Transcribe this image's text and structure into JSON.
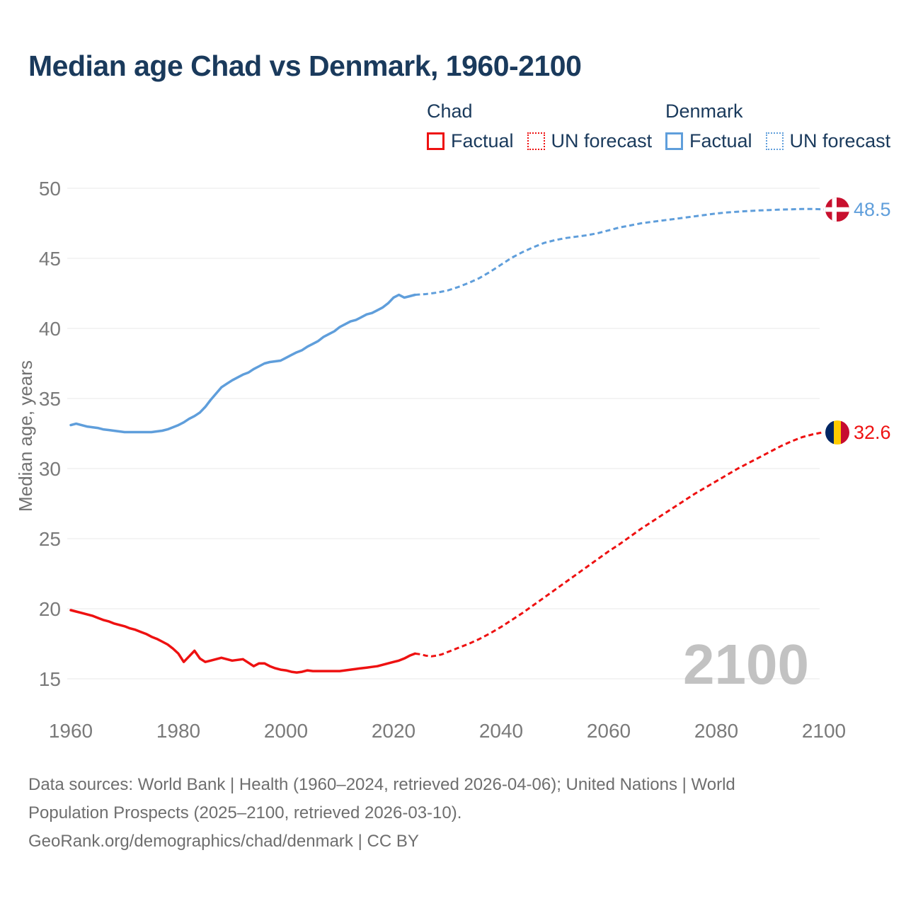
{
  "title": "Median age Chad vs Denmark, 1960-2100",
  "legend": {
    "chad": {
      "label": "Chad",
      "factual": "Factual",
      "forecast": "UN forecast"
    },
    "denmark": {
      "label": "Denmark",
      "factual": "Factual",
      "forecast": "UN forecast"
    }
  },
  "colors": {
    "chad": "#ee1111",
    "denmark": "#5f9edb",
    "title_text": "#1a3a5c",
    "tick_text": "#7a7a7a",
    "grid": "#e9e9e9",
    "watermark": "#c2c2c2",
    "footer_text": "#6e6e6e"
  },
  "flags": {
    "denmark": {
      "bg": "#c8102e",
      "cross": "#ffffff"
    },
    "chad": {
      "left": "#002664",
      "mid": "#fecb00",
      "right": "#c60c30"
    }
  },
  "end_labels": {
    "denmark": "48.5",
    "chad": "32.6"
  },
  "chart_data": {
    "type": "line",
    "title": "Median age Chad vs Denmark, 1960-2100",
    "xlabel": "",
    "ylabel": "Median age, years",
    "xlim": [
      1960,
      2100
    ],
    "ylim": [
      15,
      50
    ],
    "xticks": [
      1960,
      1980,
      2000,
      2020,
      2040,
      2060,
      2080,
      2100
    ],
    "yticks": [
      15,
      20,
      25,
      30,
      35,
      40,
      45,
      50
    ],
    "grid": "horizontal",
    "legend_position": "top-right",
    "watermark": "2100",
    "series": [
      {
        "id": "chad-factual",
        "name": "Chad — Factual",
        "color": "#ee1111",
        "style": "solid",
        "points": [
          [
            1960,
            19.9
          ],
          [
            1961,
            19.8
          ],
          [
            1962,
            19.7
          ],
          [
            1963,
            19.6
          ],
          [
            1964,
            19.5
          ],
          [
            1965,
            19.35
          ],
          [
            1966,
            19.2
          ],
          [
            1967,
            19.1
          ],
          [
            1968,
            18.95
          ],
          [
            1969,
            18.85
          ],
          [
            1970,
            18.75
          ],
          [
            1971,
            18.6
          ],
          [
            1972,
            18.5
          ],
          [
            1973,
            18.35
          ],
          [
            1974,
            18.2
          ],
          [
            1975,
            18.0
          ],
          [
            1976,
            17.85
          ],
          [
            1977,
            17.65
          ],
          [
            1978,
            17.45
          ],
          [
            1979,
            17.15
          ],
          [
            1980,
            16.8
          ],
          [
            1981,
            16.2
          ],
          [
            1982,
            16.6
          ],
          [
            1983,
            17.0
          ],
          [
            1984,
            16.45
          ],
          [
            1985,
            16.2
          ],
          [
            1986,
            16.3
          ],
          [
            1987,
            16.4
          ],
          [
            1988,
            16.5
          ],
          [
            1989,
            16.4
          ],
          [
            1990,
            16.3
          ],
          [
            1991,
            16.35
          ],
          [
            1992,
            16.4
          ],
          [
            1993,
            16.15
          ],
          [
            1994,
            15.9
          ],
          [
            1995,
            16.1
          ],
          [
            1996,
            16.1
          ],
          [
            1997,
            15.9
          ],
          [
            1998,
            15.75
          ],
          [
            1999,
            15.65
          ],
          [
            2000,
            15.6
          ],
          [
            2001,
            15.5
          ],
          [
            2002,
            15.45
          ],
          [
            2003,
            15.5
          ],
          [
            2004,
            15.6
          ],
          [
            2005,
            15.55
          ],
          [
            2006,
            15.55
          ],
          [
            2007,
            15.55
          ],
          [
            2008,
            15.55
          ],
          [
            2009,
            15.55
          ],
          [
            2010,
            15.55
          ],
          [
            2011,
            15.6
          ],
          [
            2012,
            15.65
          ],
          [
            2013,
            15.7
          ],
          [
            2014,
            15.75
          ],
          [
            2015,
            15.8
          ],
          [
            2016,
            15.85
          ],
          [
            2017,
            15.9
          ],
          [
            2018,
            16.0
          ],
          [
            2019,
            16.1
          ],
          [
            2020,
            16.2
          ],
          [
            2021,
            16.3
          ],
          [
            2022,
            16.45
          ],
          [
            2023,
            16.65
          ],
          [
            2024,
            16.8
          ]
        ]
      },
      {
        "id": "chad-forecast",
        "name": "Chad — UN forecast",
        "color": "#ee1111",
        "style": "dashed",
        "points": [
          [
            2024,
            16.8
          ],
          [
            2025,
            16.75
          ],
          [
            2026,
            16.65
          ],
          [
            2027,
            16.6
          ],
          [
            2028,
            16.65
          ],
          [
            2029,
            16.75
          ],
          [
            2030,
            16.9
          ],
          [
            2032,
            17.2
          ],
          [
            2034,
            17.5
          ],
          [
            2036,
            17.85
          ],
          [
            2038,
            18.25
          ],
          [
            2040,
            18.7
          ],
          [
            2042,
            19.2
          ],
          [
            2044,
            19.7
          ],
          [
            2046,
            20.25
          ],
          [
            2048,
            20.8
          ],
          [
            2050,
            21.35
          ],
          [
            2052,
            21.9
          ],
          [
            2054,
            22.45
          ],
          [
            2056,
            23.0
          ],
          [
            2058,
            23.55
          ],
          [
            2060,
            24.1
          ],
          [
            2062,
            24.6
          ],
          [
            2064,
            25.15
          ],
          [
            2066,
            25.7
          ],
          [
            2068,
            26.2
          ],
          [
            2070,
            26.7
          ],
          [
            2072,
            27.2
          ],
          [
            2074,
            27.7
          ],
          [
            2076,
            28.2
          ],
          [
            2078,
            28.65
          ],
          [
            2080,
            29.1
          ],
          [
            2082,
            29.55
          ],
          [
            2084,
            30.0
          ],
          [
            2086,
            30.4
          ],
          [
            2088,
            30.8
          ],
          [
            2090,
            31.2
          ],
          [
            2092,
            31.6
          ],
          [
            2094,
            31.95
          ],
          [
            2096,
            32.25
          ],
          [
            2098,
            32.45
          ],
          [
            2100,
            32.6
          ]
        ]
      },
      {
        "id": "denmark-factual",
        "name": "Denmark — Factual",
        "color": "#5f9edb",
        "style": "solid",
        "points": [
          [
            1960,
            33.1
          ],
          [
            1961,
            33.2
          ],
          [
            1962,
            33.1
          ],
          [
            1963,
            33.0
          ],
          [
            1964,
            32.95
          ],
          [
            1965,
            32.9
          ],
          [
            1966,
            32.8
          ],
          [
            1967,
            32.75
          ],
          [
            1968,
            32.7
          ],
          [
            1969,
            32.65
          ],
          [
            1970,
            32.6
          ],
          [
            1971,
            32.6
          ],
          [
            1972,
            32.6
          ],
          [
            1973,
            32.6
          ],
          [
            1974,
            32.6
          ],
          [
            1975,
            32.6
          ],
          [
            1976,
            32.65
          ],
          [
            1977,
            32.7
          ],
          [
            1978,
            32.8
          ],
          [
            1979,
            32.95
          ],
          [
            1980,
            33.1
          ],
          [
            1981,
            33.3
          ],
          [
            1982,
            33.55
          ],
          [
            1983,
            33.75
          ],
          [
            1984,
            34.0
          ],
          [
            1985,
            34.4
          ],
          [
            1986,
            34.9
          ],
          [
            1987,
            35.35
          ],
          [
            1988,
            35.8
          ],
          [
            1989,
            36.05
          ],
          [
            1990,
            36.3
          ],
          [
            1991,
            36.5
          ],
          [
            1992,
            36.7
          ],
          [
            1993,
            36.85
          ],
          [
            1994,
            37.1
          ],
          [
            1995,
            37.3
          ],
          [
            1996,
            37.5
          ],
          [
            1997,
            37.6
          ],
          [
            1998,
            37.65
          ],
          [
            1999,
            37.7
          ],
          [
            2000,
            37.9
          ],
          [
            2001,
            38.1
          ],
          [
            2002,
            38.3
          ],
          [
            2003,
            38.45
          ],
          [
            2004,
            38.7
          ],
          [
            2005,
            38.9
          ],
          [
            2006,
            39.1
          ],
          [
            2007,
            39.4
          ],
          [
            2008,
            39.6
          ],
          [
            2009,
            39.8
          ],
          [
            2010,
            40.1
          ],
          [
            2011,
            40.3
          ],
          [
            2012,
            40.5
          ],
          [
            2013,
            40.6
          ],
          [
            2014,
            40.8
          ],
          [
            2015,
            41.0
          ],
          [
            2016,
            41.1
          ],
          [
            2017,
            41.3
          ],
          [
            2018,
            41.5
          ],
          [
            2019,
            41.8
          ],
          [
            2020,
            42.2
          ],
          [
            2021,
            42.4
          ],
          [
            2022,
            42.2
          ],
          [
            2023,
            42.3
          ],
          [
            2024,
            42.4
          ]
        ]
      },
      {
        "id": "denmark-forecast",
        "name": "Denmark — UN forecast",
        "color": "#5f9edb",
        "style": "dashed",
        "points": [
          [
            2024,
            42.4
          ],
          [
            2026,
            42.45
          ],
          [
            2028,
            42.55
          ],
          [
            2030,
            42.7
          ],
          [
            2032,
            42.95
          ],
          [
            2034,
            43.25
          ],
          [
            2036,
            43.6
          ],
          [
            2038,
            44.05
          ],
          [
            2040,
            44.55
          ],
          [
            2042,
            45.05
          ],
          [
            2044,
            45.45
          ],
          [
            2046,
            45.8
          ],
          [
            2048,
            46.1
          ],
          [
            2050,
            46.3
          ],
          [
            2052,
            46.45
          ],
          [
            2054,
            46.55
          ],
          [
            2056,
            46.65
          ],
          [
            2058,
            46.8
          ],
          [
            2060,
            47.0
          ],
          [
            2062,
            47.2
          ],
          [
            2064,
            47.35
          ],
          [
            2066,
            47.5
          ],
          [
            2068,
            47.6
          ],
          [
            2070,
            47.7
          ],
          [
            2072,
            47.8
          ],
          [
            2074,
            47.9
          ],
          [
            2076,
            48.0
          ],
          [
            2078,
            48.1
          ],
          [
            2080,
            48.2
          ],
          [
            2082,
            48.28
          ],
          [
            2084,
            48.33
          ],
          [
            2086,
            48.38
          ],
          [
            2088,
            48.42
          ],
          [
            2090,
            48.45
          ],
          [
            2092,
            48.48
          ],
          [
            2094,
            48.5
          ],
          [
            2096,
            48.52
          ],
          [
            2098,
            48.52
          ],
          [
            2100,
            48.5
          ]
        ]
      }
    ],
    "end_markers": [
      {
        "series": "Denmark",
        "year": 2100,
        "value": 48.5,
        "flag": "denmark-flag"
      },
      {
        "series": "Chad",
        "year": 2100,
        "value": 32.6,
        "flag": "chad-flag"
      }
    ]
  },
  "footer": {
    "line1": "Data sources: World Bank | Health (1960–2024, retrieved 2026-04-06); United Nations | World",
    "line2": "Population Prospects (2025–2100, retrieved 2026-03-10).",
    "line3": "GeoRank.org/demographics/chad/denmark | CC BY"
  }
}
